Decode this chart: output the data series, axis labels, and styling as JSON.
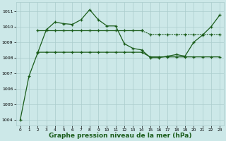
{
  "background_color": "#cce8e8",
  "line_color": "#1a5c1a",
  "grid_color": "#aacccc",
  "xlabel": "Graphe pression niveau de la mer (hPa)",
  "xlabel_fontsize": 6.5,
  "xlim": [
    -0.5,
    23.5
  ],
  "ylim": [
    1003.6,
    1011.6
  ],
  "yticks": [
    1004,
    1005,
    1006,
    1007,
    1008,
    1009,
    1010,
    1011
  ],
  "xticks": [
    0,
    1,
    2,
    3,
    4,
    5,
    6,
    7,
    8,
    9,
    10,
    11,
    12,
    13,
    14,
    15,
    16,
    17,
    18,
    19,
    20,
    21,
    22,
    23
  ],
  "series1_x": [
    0,
    1,
    2,
    3,
    4,
    5,
    6,
    7,
    8,
    9,
    10,
    11,
    12,
    13,
    14,
    15,
    16,
    17,
    18,
    19,
    20,
    21,
    22,
    23
  ],
  "series1_y": [
    1004.0,
    1006.8,
    1008.3,
    1009.8,
    1010.3,
    1010.2,
    1010.15,
    1010.45,
    1011.1,
    1010.45,
    1010.05,
    1010.05,
    1008.9,
    1008.6,
    1008.5,
    1008.0,
    1008.0,
    1008.1,
    1008.2,
    1008.1,
    1009.0,
    1009.45,
    1010.0,
    1010.75
  ],
  "series2_x": [
    2,
    3,
    4,
    5,
    6,
    7,
    8,
    9,
    10,
    11,
    12,
    13,
    14,
    15,
    16,
    17,
    18,
    19,
    20,
    21,
    22,
    23
  ],
  "series2_y": [
    1008.35,
    1008.35,
    1008.35,
    1008.35,
    1008.35,
    1008.35,
    1008.35,
    1008.35,
    1008.35,
    1008.35,
    1008.35,
    1008.35,
    1008.35,
    1008.05,
    1008.05,
    1008.05,
    1008.05,
    1008.05,
    1008.05,
    1008.05,
    1008.05,
    1008.05
  ],
  "series3_solid_x": [
    2,
    3,
    4,
    5,
    6,
    7,
    8,
    9,
    10,
    11,
    12,
    13,
    14
  ],
  "series3_solid_y": [
    1009.75,
    1009.75,
    1009.75,
    1009.75,
    1009.75,
    1009.75,
    1009.75,
    1009.75,
    1009.75,
    1009.75,
    1009.75,
    1009.75,
    1009.75
  ],
  "series3_dot_x": [
    14,
    15,
    16,
    17,
    18,
    19,
    20,
    21,
    22,
    23
  ],
  "series3_dot_y": [
    1009.75,
    1009.5,
    1009.5,
    1009.5,
    1009.5,
    1009.5,
    1009.5,
    1009.5,
    1009.5,
    1009.5
  ]
}
